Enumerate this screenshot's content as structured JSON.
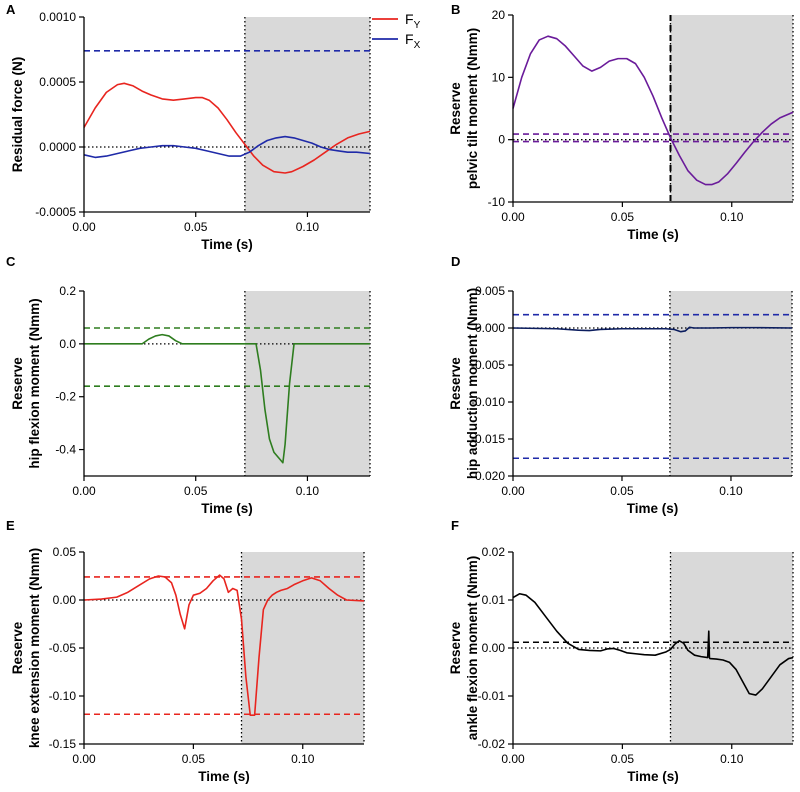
{
  "figure": {
    "shade_color": "#d9d9d9"
  },
  "chart_data": [
    {
      "panel": "A",
      "type": "line",
      "xlabel": "Time (s)",
      "ylabel_lines": [
        "Residual force (N)"
      ],
      "xlim": [
        0,
        0.128
      ],
      "ylim": [
        -0.0005,
        0.001
      ],
      "xticks": [
        0,
        0.05,
        0.1
      ],
      "xtick_labels": [
        "0.00",
        "0.05",
        "0.10"
      ],
      "yticks": [
        -0.0005,
        0,
        0.0005,
        0.001
      ],
      "ytick_labels": [
        "-0.0005",
        "0.0000",
        "0.0005",
        "0.0010"
      ],
      "shade": [
        0.072,
        0.128
      ],
      "zero_line": true,
      "legend": [
        {
          "label": "F",
          "sub": "Y",
          "color": "#e8251f"
        },
        {
          "label": "F",
          "sub": "X",
          "color": "#1f2aa8"
        }
      ],
      "hlines": [
        {
          "y": 0.00074,
          "color": "#1f2aa8",
          "style": "dashed"
        }
      ],
      "series": [
        {
          "name": "FY",
          "color": "#e8251f",
          "x": [
            0,
            0.005,
            0.01,
            0.015,
            0.018,
            0.022,
            0.026,
            0.03,
            0.035,
            0.04,
            0.045,
            0.05,
            0.053,
            0.056,
            0.06,
            0.064,
            0.068,
            0.072,
            0.076,
            0.08,
            0.085,
            0.09,
            0.093,
            0.098,
            0.103,
            0.108,
            0.113,
            0.118,
            0.123,
            0.128
          ],
          "y": [
            0.00015,
            0.0003,
            0.00042,
            0.00048,
            0.00049,
            0.00047,
            0.00043,
            0.0004,
            0.00037,
            0.00036,
            0.00037,
            0.00038,
            0.00038,
            0.00036,
            0.0003,
            0.00021,
            0.00011,
            2e-05,
            -7e-05,
            -0.00014,
            -0.00019,
            -0.0002,
            -0.00019,
            -0.00015,
            -0.0001,
            -4e-05,
            2e-05,
            7e-05,
            0.0001,
            0.00012
          ]
        },
        {
          "name": "FX",
          "color": "#1f2aa8",
          "x": [
            0,
            0.005,
            0.01,
            0.015,
            0.02,
            0.025,
            0.03,
            0.035,
            0.04,
            0.045,
            0.05,
            0.055,
            0.06,
            0.065,
            0.07,
            0.074,
            0.078,
            0.082,
            0.086,
            0.09,
            0.094,
            0.098,
            0.102,
            0.106,
            0.11,
            0.114,
            0.118,
            0.122,
            0.128
          ],
          "y": [
            -6e-05,
            -8e-05,
            -7e-05,
            -5e-05,
            -3e-05,
            -1e-05,
            0.0,
            1e-05,
            1e-05,
            0.0,
            -1e-05,
            -3e-05,
            -5e-05,
            -7e-05,
            -7e-05,
            -4e-05,
            1e-05,
            5e-05,
            7e-05,
            8e-05,
            7e-05,
            5e-05,
            3e-05,
            0.0,
            -2e-05,
            -3e-05,
            -4e-05,
            -4e-05,
            -5e-05
          ]
        }
      ]
    },
    {
      "panel": "B",
      "type": "line",
      "xlabel": "Time (s)",
      "ylabel_lines": [
        "Reserve",
        "pelvic tilt moment (Nmm)"
      ],
      "xlim": [
        0,
        0.128
      ],
      "ylim": [
        -10,
        20
      ],
      "xticks": [
        0,
        0.05,
        0.1
      ],
      "xtick_labels": [
        "0.00",
        "0.05",
        "0.10"
      ],
      "yticks": [
        -10,
        0,
        10,
        20
      ],
      "ytick_labels": [
        "-10",
        "0",
        "10",
        "20"
      ],
      "shade": [
        0.072,
        0.128
      ],
      "vline": {
        "x": 0.072,
        "color": "#000000"
      },
      "zero_line": true,
      "hlines": [
        {
          "y": 0.9,
          "color": "#6a1b9a",
          "style": "dashed"
        },
        {
          "y": -0.3,
          "color": "#6a1b9a",
          "style": "dashed"
        }
      ],
      "series": [
        {
          "name": "pelvic tilt",
          "color": "#6a1b9a",
          "x": [
            0,
            0.004,
            0.008,
            0.012,
            0.016,
            0.02,
            0.024,
            0.028,
            0.032,
            0.036,
            0.04,
            0.044,
            0.048,
            0.052,
            0.056,
            0.06,
            0.064,
            0.068,
            0.072,
            0.076,
            0.08,
            0.084,
            0.088,
            0.091,
            0.094,
            0.098,
            0.102,
            0.106,
            0.11,
            0.114,
            0.118,
            0.122,
            0.128
          ],
          "y": [
            5,
            10,
            13.8,
            16,
            16.6,
            16.2,
            15,
            13.4,
            11.8,
            11,
            11.6,
            12.6,
            13,
            13,
            12.2,
            10,
            7,
            3.5,
            0.3,
            -2.5,
            -5,
            -6.5,
            -7.2,
            -7.2,
            -6.8,
            -5.5,
            -3.8,
            -2,
            -0.3,
            1.2,
            2.5,
            3.5,
            4.4
          ]
        }
      ]
    },
    {
      "panel": "C",
      "type": "line",
      "xlabel": "Time (s)",
      "ylabel_lines": [
        "Reserve",
        "hip flexion moment (Nmm)"
      ],
      "xlim": [
        0,
        0.128
      ],
      "ylim": [
        -0.5,
        0.2
      ],
      "xticks": [
        0,
        0.05,
        0.1
      ],
      "xtick_labels": [
        "0.00",
        "0.05",
        "0.10"
      ],
      "yticks": [
        -0.4,
        -0.2,
        0,
        0.2
      ],
      "ytick_labels": [
        "-0.4",
        "-0.2",
        "0.0",
        "0.2"
      ],
      "shade": [
        0.072,
        0.128
      ],
      "zero_line": true,
      "hlines": [
        {
          "y": 0.06,
          "color": "#2e7d1f",
          "style": "dashed"
        },
        {
          "y": -0.16,
          "color": "#2e7d1f",
          "style": "dashed"
        }
      ],
      "series": [
        {
          "name": "hip flexion",
          "color": "#2e7d1f",
          "x": [
            0,
            0.026,
            0.029,
            0.032,
            0.035,
            0.038,
            0.041,
            0.044,
            0.072,
            0.077,
            0.079,
            0.081,
            0.083,
            0.085,
            0.087,
            0.088,
            0.089,
            0.09,
            0.092,
            0.094,
            0.128
          ],
          "y": [
            0,
            0,
            0.018,
            0.03,
            0.035,
            0.03,
            0.012,
            0,
            0,
            0,
            -0.1,
            -0.25,
            -0.36,
            -0.41,
            -0.43,
            -0.44,
            -0.45,
            -0.38,
            -0.15,
            0,
            0
          ]
        }
      ]
    },
    {
      "panel": "D",
      "type": "line",
      "xlabel": "Time (s)",
      "ylabel_lines": [
        "Reserve",
        "hip adduction moment (Nmm)"
      ],
      "xlim": [
        0,
        0.128
      ],
      "ylim": [
        -0.02,
        0.005
      ],
      "xticks": [
        0,
        0.05,
        0.1
      ],
      "xtick_labels": [
        "0.00",
        "0.05",
        "0.10"
      ],
      "yticks": [
        -0.02,
        -0.015,
        -0.01,
        -0.005,
        0,
        0.005
      ],
      "ytick_labels": [
        "-0.020",
        "-0.015",
        "-0.010",
        "-0.005",
        "0.000",
        "0.005"
      ],
      "shade": [
        0.072,
        0.128
      ],
      "zero_line": true,
      "hlines": [
        {
          "y": 0.0018,
          "color": "#1f2aa8",
          "style": "dashed"
        },
        {
          "y": -0.0176,
          "color": "#1f2aa8",
          "style": "dashed"
        }
      ],
      "series": [
        {
          "name": "hip adduction",
          "color": "#0b1d5e",
          "x": [
            0,
            0.02,
            0.03,
            0.035,
            0.04,
            0.05,
            0.06,
            0.07,
            0.074,
            0.077,
            0.079,
            0.081,
            0.083,
            0.09,
            0.1,
            0.11,
            0.128
          ],
          "y": [
            0,
            -0.0001,
            -0.0003,
            -0.00035,
            -0.0002,
            -0.0001,
            -0.0001,
            -0.0001,
            -0.0002,
            -0.0005,
            -0.0004,
            0.0001,
            0,
            0,
            5e-05,
            5e-05,
            0
          ]
        }
      ]
    },
    {
      "panel": "E",
      "type": "line",
      "xlabel": "Time (s)",
      "ylabel_lines": [
        "Reserve",
        "knee extension moment (Nmm)"
      ],
      "xlim": [
        0,
        0.128
      ],
      "ylim": [
        -0.15,
        0.05
      ],
      "xticks": [
        0,
        0.05,
        0.1
      ],
      "xtick_labels": [
        "0.00",
        "0.05",
        "0.10"
      ],
      "yticks": [
        -0.15,
        -0.1,
        -0.05,
        0,
        0.05
      ],
      "ytick_labels": [
        "-0.15",
        "-0.10",
        "-0.05",
        "0.00",
        "0.05"
      ],
      "shade": [
        0.072,
        0.128
      ],
      "zero_line": true,
      "hlines": [
        {
          "y": 0.024,
          "color": "#e8251f",
          "style": "dashed"
        },
        {
          "y": -0.119,
          "color": "#e8251f",
          "style": "dashed"
        }
      ],
      "series": [
        {
          "name": "knee extension",
          "color": "#e8251f",
          "x": [
            0,
            0.008,
            0.015,
            0.02,
            0.025,
            0.03,
            0.034,
            0.037,
            0.04,
            0.042,
            0.044,
            0.046,
            0.048,
            0.05,
            0.053,
            0.056,
            0.059,
            0.062,
            0.064,
            0.066,
            0.068,
            0.07,
            0.072,
            0.074,
            0.076,
            0.078,
            0.08,
            0.082,
            0.084,
            0.086,
            0.088,
            0.09,
            0.093,
            0.096,
            0.1,
            0.104,
            0.108,
            0.112,
            0.116,
            0.12,
            0.128
          ],
          "y": [
            0,
            0.001,
            0.003,
            0.008,
            0.015,
            0.022,
            0.025,
            0.024,
            0.018,
            0.005,
            -0.015,
            -0.03,
            -0.005,
            0.005,
            0.007,
            0.012,
            0.02,
            0.026,
            0.022,
            0.008,
            0.012,
            0.01,
            -0.02,
            -0.08,
            -0.12,
            -0.12,
            -0.06,
            -0.01,
            0.0,
            0.005,
            0.008,
            0.01,
            0.012,
            0.016,
            0.02,
            0.023,
            0.02,
            0.012,
            0.005,
            0.0,
            -0.001
          ]
        }
      ]
    },
    {
      "panel": "F",
      "type": "line",
      "xlabel": "Time (s)",
      "ylabel_lines": [
        "Reserve",
        "ankle flexion moment (Nmm)"
      ],
      "xlim": [
        0,
        0.128
      ],
      "ylim": [
        -0.02,
        0.02
      ],
      "xticks": [
        0,
        0.05,
        0.1
      ],
      "xtick_labels": [
        "0.00",
        "0.05",
        "0.10"
      ],
      "yticks": [
        -0.02,
        -0.01,
        0,
        0.01,
        0.02
      ],
      "ytick_labels": [
        "-0.02",
        "-0.01",
        "0.00",
        "0.01",
        "0.02"
      ],
      "shade": [
        0.072,
        0.128
      ],
      "zero_line": true,
      "hlines": [
        {
          "y": 0.0012,
          "color": "#000000",
          "style": "dashed"
        }
      ],
      "series": [
        {
          "name": "ankle flexion",
          "color": "#000000",
          "x": [
            0,
            0.003,
            0.006,
            0.01,
            0.015,
            0.02,
            0.025,
            0.03,
            0.035,
            0.04,
            0.043,
            0.046,
            0.049,
            0.052,
            0.056,
            0.06,
            0.065,
            0.07,
            0.072,
            0.074,
            0.076,
            0.078,
            0.08,
            0.083,
            0.086,
            0.089,
            0.0895,
            0.0898,
            0.09,
            0.093,
            0.096,
            0.099,
            0.102,
            0.105,
            0.108,
            0.111,
            0.114,
            0.118,
            0.122,
            0.126,
            0.128
          ],
          "y": [
            0.0105,
            0.0113,
            0.011,
            0.0095,
            0.0065,
            0.0035,
            0.001,
            -0.0003,
            -0.0005,
            -0.0006,
            -0.0002,
            -0.0001,
            -0.0005,
            -0.001,
            -0.0012,
            -0.0014,
            -0.0015,
            -0.0008,
            -0.0003,
            0.0008,
            0.0015,
            0.001,
            -0.0005,
            -0.0015,
            -0.0018,
            -0.002,
            0.0035,
            -0.002,
            -0.0022,
            -0.0023,
            -0.0025,
            -0.003,
            -0.0045,
            -0.007,
            -0.0095,
            -0.0098,
            -0.0085,
            -0.006,
            -0.0035,
            -0.0022,
            -0.002
          ]
        }
      ]
    }
  ]
}
